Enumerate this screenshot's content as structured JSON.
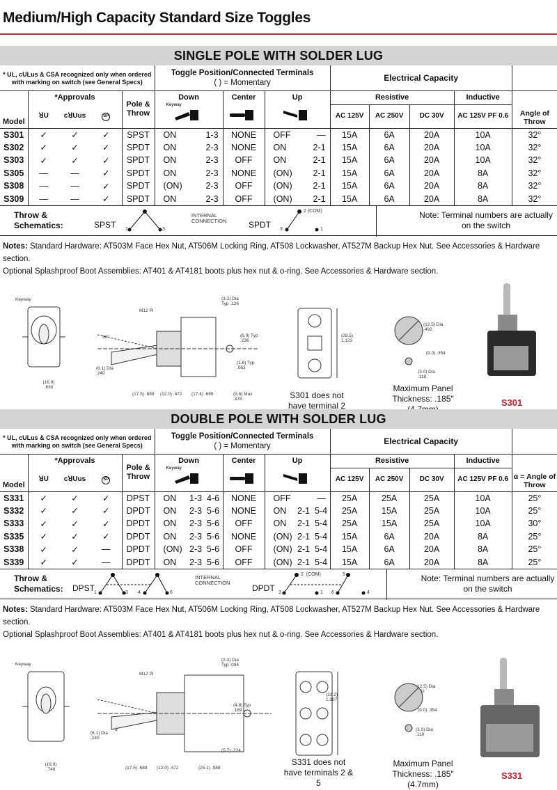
{
  "page_title": "Medium/High Capacity Standard Size Toggles",
  "colors": {
    "accent": "#d0202a",
    "band": "#d4d4d4"
  },
  "common": {
    "approval_note": "* UL, cULus & CSA recognized only when ordered with marking on switch (see General Specs)",
    "toggle_header": "Toggle Position/Connected Terminals",
    "momentary": "(    ) = Momentary",
    "elec_header": "Electrical Capacity",
    "approvals": "*Approvals",
    "model": "Model",
    "pole_throw": "Pole & Throw",
    "down": "Down",
    "center": "Center",
    "up": "Up",
    "keyway": "Keyway",
    "resistive": "Resistive",
    "inductive": "Inductive",
    "ac125": "AC 125V",
    "ac250": "AC 250V",
    "dc30": "DC 30V",
    "ind": "AC 125V PF 0.6",
    "approval_icons": [
      "UL-icon",
      "cULus-icon",
      "CSA-icon"
    ],
    "throw_label": "Throw & Schematics:",
    "internal": "INTERNAL CONNECTION",
    "note_terminals": "Note: Terminal numbers are actually on the switch",
    "notes_label": "Notes:",
    "notes_line1": "Standard Hardware:  AT503M Face Hex Nut, AT506M Locking Ring, AT508 Lockwasher, AT527M Backup Hex Nut. See Accessories & Hardware section.",
    "notes_line2": "Optional Splashproof Boot Assemblies:  AT401 & AT4181 boots plus hex nut & o-ring.  See Accessories & Hardware section.",
    "max_panel": "Maximum Panel Thickness: .185″ (4.7mm)",
    "m12": "M12 PI"
  },
  "single": {
    "heading": "SINGLE POLE WITH SOLDER LUG",
    "angle_header": "Angle of Throw",
    "rows": [
      [
        "S301",
        "✓",
        "✓",
        "✓",
        "SPST",
        "ON",
        "1-3",
        "NONE",
        "OFF",
        "—",
        "15A",
        "6A",
        "20A",
        "10A",
        "32°"
      ],
      [
        "S302",
        "✓",
        "✓",
        "✓",
        "SPDT",
        "ON",
        "2-3",
        "NONE",
        "ON",
        "2-1",
        "15A",
        "6A",
        "20A",
        "10A",
        "32°"
      ],
      [
        "S303",
        "✓",
        "✓",
        "✓",
        "SPDT",
        "ON",
        "2-3",
        "OFF",
        "ON",
        "2-1",
        "15A",
        "6A",
        "20A",
        "10A",
        "32°"
      ],
      [
        "S305",
        "—",
        "—",
        "✓",
        "SPDT",
        "ON",
        "2-3",
        "NONE",
        "(ON)",
        "2-1",
        "15A",
        "6A",
        "20A",
        "8A",
        "32°"
      ],
      [
        "S308",
        "—",
        "—",
        "✓",
        "SPDT",
        "(ON)",
        "2-3",
        "OFF",
        "(ON)",
        "2-1",
        "15A",
        "6A",
        "20A",
        "8A",
        "32°"
      ],
      [
        "S309",
        "—",
        "—",
        "✓",
        "SPDT",
        "ON",
        "2-3",
        "OFF",
        "(ON)",
        "2-1",
        "15A",
        "6A",
        "20A",
        "8A",
        "32°"
      ]
    ],
    "schem_a": "SPST",
    "schem_b": "SPDT",
    "terms_a": [
      "1",
      "3"
    ],
    "terms_b": [
      "2 (COM)",
      "3",
      "1"
    ],
    "dims": [
      "(16.0) .630",
      "(17.5) .689",
      "(12.0) .472",
      "(17.4) .685",
      "(9.6) Max .378",
      "(3.2) Dia Typ .126",
      "(6.0) Typ .236",
      "(1.6) Typ .063",
      "(6.1) Dia .240",
      "32°",
      "(28.5) 1.122",
      "(12.5) Dia .492",
      "(9.0) .354",
      "(3.0) Dia .118"
    ],
    "terminal_note": "S301 does not have terminal 2",
    "photo_label": "S301"
  },
  "double": {
    "heading": "DOUBLE POLE WITH SOLDER LUG",
    "angle_header": "α = Angle of Throw",
    "rows": [
      [
        "S331",
        "✓",
        "✓",
        "✓",
        "DPST",
        "ON",
        "1-3  4-6",
        "NONE",
        "OFF",
        "—",
        "25A",
        "25A",
        "25A",
        "10A",
        "25°"
      ],
      [
        "S332",
        "✓",
        "✓",
        "✓",
        "DPDT",
        "ON",
        "2-3  5-6",
        "NONE",
        "ON",
        "2-1  5-4",
        "25A",
        "15A",
        "25A",
        "10A",
        "25°"
      ],
      [
        "S333",
        "✓",
        "✓",
        "✓",
        "DPDT",
        "ON",
        "2-3  5-6",
        "OFF",
        "ON",
        "2-1  5-4",
        "25A",
        "15A",
        "25A",
        "10A",
        "30°"
      ],
      [
        "S335",
        "✓",
        "✓",
        "✓",
        "DPDT",
        "ON",
        "2-3  5-6",
        "NONE",
        "(ON)",
        "2-1  5-4",
        "15A",
        "6A",
        "20A",
        "8A",
        "25°"
      ],
      [
        "S338",
        "✓",
        "✓",
        "—",
        "DPDT",
        "(ON)",
        "2-3  5-6",
        "OFF",
        "(ON)",
        "2-1  5-4",
        "15A",
        "6A",
        "20A",
        "8A",
        "25°"
      ],
      [
        "S339",
        "✓",
        "✓",
        "—",
        "DPDT",
        "ON",
        "2-3  5-6",
        "OFF",
        "(ON)",
        "2-1  5-4",
        "15A",
        "6A",
        "20A",
        "8A",
        "25°"
      ]
    ],
    "schem_a": "DPST",
    "schem_b": "DPDT",
    "terms_a": [
      "1",
      "3",
      "4",
      "6"
    ],
    "terms_b": [
      "2  (COM)",
      "5",
      "3",
      "1",
      "6",
      "4"
    ],
    "dims": [
      "(19.0) .748",
      "(17.5) .689",
      "(12.0) .472",
      "(25.1) .988",
      "(5.7) .224",
      "(2.4) Dia Typ .094",
      "(4.8) Typ .189",
      "(6.1) Dia .240",
      "α",
      "(33.2) 1.307",
      "(12.5) Dia .492",
      "(9.0) .354",
      "(3.0) Dia .118"
    ],
    "terminal_note": "S331 does not have terminals 2 & 5",
    "photo_label": "S331"
  }
}
